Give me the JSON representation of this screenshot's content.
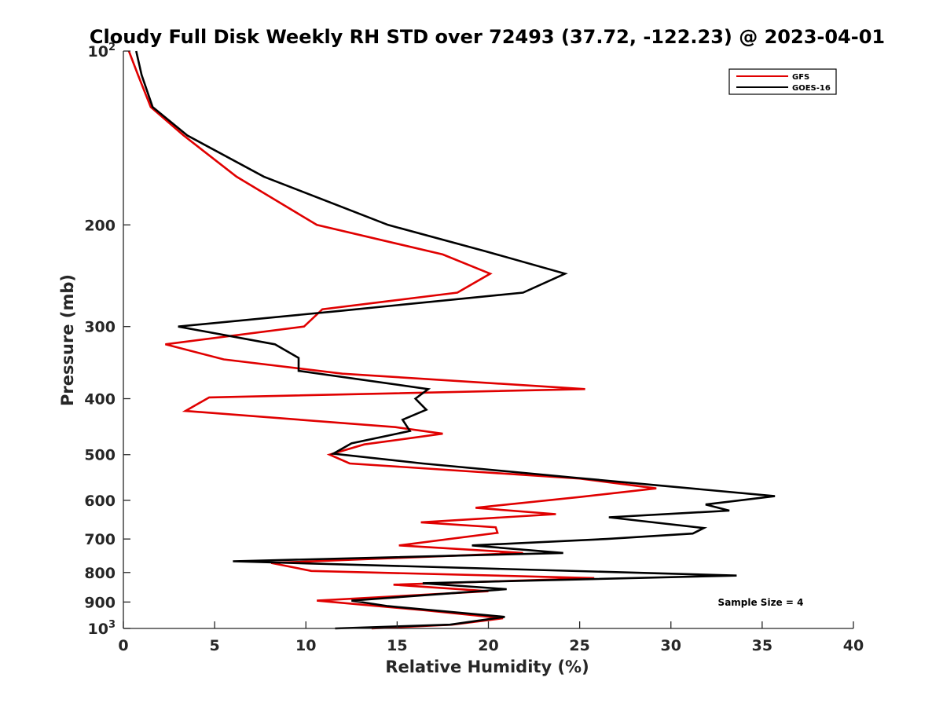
{
  "chart_data": {
    "type": "line",
    "orientation": "vertical-profile",
    "title": "Cloudy Full Disk Weekly RH STD over 72493 (37.72, -122.23) @ 2023-04-01",
    "xlabel": "Relative Humidity (%)",
    "ylabel": "Pressure (mb)",
    "xlim": [
      0,
      40
    ],
    "ylim": [
      100,
      1000
    ],
    "y_scale": "log",
    "y_reversed": true,
    "grid": false,
    "legend_position": "top-right",
    "x_ticks": [
      "0",
      "5",
      "10",
      "15",
      "20",
      "25",
      "30",
      "35",
      "40"
    ],
    "y_ticks": [
      {
        "value": 100,
        "label": "10",
        "sup": "2"
      },
      {
        "value": 200,
        "label": "200",
        "sup": ""
      },
      {
        "value": 300,
        "label": "300",
        "sup": ""
      },
      {
        "value": 400,
        "label": "400",
        "sup": ""
      },
      {
        "value": 500,
        "label": "500",
        "sup": ""
      },
      {
        "value": 600,
        "label": "600",
        "sup": ""
      },
      {
        "value": 700,
        "label": "700",
        "sup": ""
      },
      {
        "value": 800,
        "label": "800",
        "sup": ""
      },
      {
        "value": 900,
        "label": "900",
        "sup": ""
      },
      {
        "value": 1000,
        "label": "10",
        "sup": "3"
      }
    ],
    "annotation": "Sample Size = 4",
    "series": [
      {
        "name": "GFS",
        "color": "#e00000",
        "points": [
          [
            0.3,
            100
          ],
          [
            0.8,
            110
          ],
          [
            1.5,
            125
          ],
          [
            3.3,
            140
          ],
          [
            6.2,
            165
          ],
          [
            10.6,
            200
          ],
          [
            17.5,
            225
          ],
          [
            20.1,
            243
          ],
          [
            18.3,
            262
          ],
          [
            10.9,
            280
          ],
          [
            9.9,
            300
          ],
          [
            2.3,
            322
          ],
          [
            5.5,
            342
          ],
          [
            12.0,
            362
          ],
          [
            25.3,
            385
          ],
          [
            4.7,
            398
          ],
          [
            3.4,
            420
          ],
          [
            14.9,
            448
          ],
          [
            17.5,
            460
          ],
          [
            13.2,
            480
          ],
          [
            11.3,
            500
          ],
          [
            12.4,
            518
          ],
          [
            25.0,
            550
          ],
          [
            29.2,
            572
          ],
          [
            25.0,
            592
          ],
          [
            19.3,
            618
          ],
          [
            23.7,
            634
          ],
          [
            16.3,
            655
          ],
          [
            20.4,
            668
          ],
          [
            20.5,
            683
          ],
          [
            15.1,
            718
          ],
          [
            21.9,
            740
          ],
          [
            8.1,
            770
          ],
          [
            10.3,
            795
          ],
          [
            25.8,
            818
          ],
          [
            14.8,
            840
          ],
          [
            20.0,
            862
          ],
          [
            10.6,
            895
          ],
          [
            16.5,
            930
          ],
          [
            20.8,
            960
          ],
          [
            18.0,
            985
          ],
          [
            13.6,
            1000
          ]
        ]
      },
      {
        "name": "GOES-16",
        "color": "#000000",
        "points": [
          [
            0.7,
            100
          ],
          [
            1.0,
            110
          ],
          [
            1.6,
            125
          ],
          [
            3.5,
            140
          ],
          [
            7.7,
            165
          ],
          [
            14.5,
            200
          ],
          [
            19.8,
            222
          ],
          [
            24.2,
            243
          ],
          [
            21.9,
            262
          ],
          [
            11.8,
            282
          ],
          [
            3.0,
            300
          ],
          [
            8.3,
            322
          ],
          [
            9.6,
            340
          ],
          [
            9.6,
            358
          ],
          [
            16.7,
            385
          ],
          [
            16.0,
            400
          ],
          [
            16.6,
            418
          ],
          [
            15.3,
            435
          ],
          [
            15.7,
            455
          ],
          [
            12.5,
            478
          ],
          [
            11.5,
            498
          ],
          [
            16.4,
            518
          ],
          [
            24.7,
            548
          ],
          [
            35.7,
            590
          ],
          [
            31.9,
            610
          ],
          [
            33.2,
            625
          ],
          [
            26.6,
            642
          ],
          [
            31.8,
            670
          ],
          [
            31.2,
            685
          ],
          [
            26.5,
            700
          ],
          [
            19.1,
            718
          ],
          [
            24.1,
            740
          ],
          [
            6.0,
            765
          ],
          [
            33.6,
            810
          ],
          [
            16.4,
            835
          ],
          [
            21.0,
            855
          ],
          [
            12.5,
            895
          ],
          [
            14.5,
            915
          ],
          [
            20.9,
            955
          ],
          [
            17.9,
            985
          ],
          [
            11.6,
            1000
          ]
        ]
      }
    ]
  }
}
